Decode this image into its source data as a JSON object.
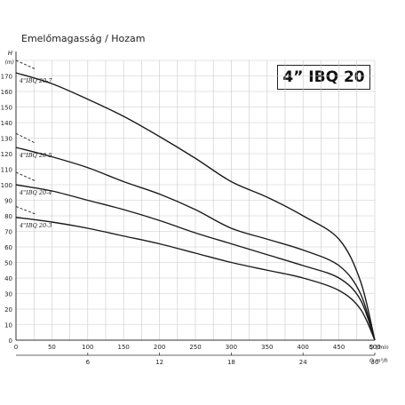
{
  "chart_data": {
    "type": "line",
    "title": "4” IBQ 20",
    "header": "Emelőmagasság / Hozam",
    "ylabel": "H",
    "yunit": "(m)",
    "xlabel_lmin": "Q l/min",
    "xlabel_m3h": "Q m³/h",
    "xlim": [
      0,
      500
    ],
    "ylim": [
      0,
      180
    ],
    "yticks": [
      0,
      10,
      20,
      30,
      40,
      50,
      60,
      70,
      80,
      90,
      100,
      110,
      120,
      130,
      140,
      150,
      160,
      170
    ],
    "xticks_lmin": [
      0,
      50,
      100,
      150,
      200,
      250,
      300,
      350,
      400,
      450,
      500
    ],
    "xticks_m3h": [
      {
        "label": "6",
        "at": 100
      },
      {
        "label": "12",
        "at": 200
      },
      {
        "label": "18",
        "at": 300
      },
      {
        "label": "24",
        "at": 400
      },
      {
        "label": "30",
        "at": 500
      }
    ],
    "grid": true,
    "series": [
      {
        "name": "4\"IBQ 20-7",
        "x": [
          0,
          50,
          100,
          150,
          200,
          250,
          300,
          350,
          400,
          450,
          480,
          500
        ],
        "y": [
          172,
          165,
          155,
          144,
          131,
          117,
          102,
          92,
          80,
          65,
          38,
          0
        ],
        "dash_y": 180
      },
      {
        "name": "4\"IBQ 20-5",
        "x": [
          0,
          50,
          100,
          150,
          200,
          250,
          300,
          350,
          400,
          450,
          480,
          500
        ],
        "y": [
          124,
          118,
          111,
          102,
          94,
          84,
          72,
          65,
          58,
          48,
          30,
          0
        ],
        "dash_y": 133
      },
      {
        "name": "4\"IBQ 20-4",
        "x": [
          0,
          50,
          100,
          150,
          200,
          250,
          300,
          350,
          400,
          450,
          480,
          500
        ],
        "y": [
          100,
          96,
          90,
          84,
          77,
          69,
          62,
          55,
          48,
          40,
          26,
          0
        ],
        "dash_y": 108
      },
      {
        "name": "4\"IBQ 20-3",
        "x": [
          0,
          50,
          100,
          150,
          200,
          250,
          300,
          350,
          400,
          450,
          480,
          500
        ],
        "y": [
          79,
          76,
          72,
          67,
          62,
          56,
          50,
          45,
          40,
          32,
          20,
          0
        ],
        "dash_y": 86
      }
    ]
  }
}
